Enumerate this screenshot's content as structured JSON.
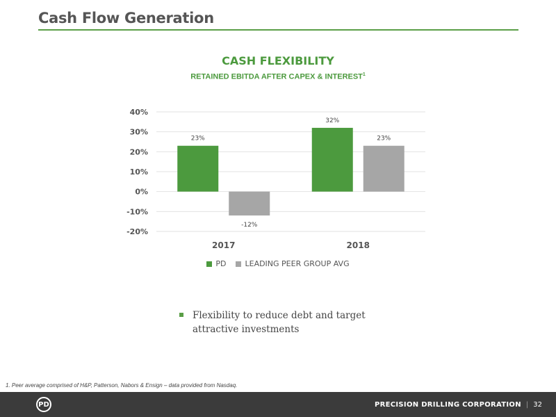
{
  "header": {
    "title": "Cash Flow Generation"
  },
  "chart_data": {
    "type": "bar",
    "title": "CASH FLEXIBILITY",
    "subtitle": "RETAINED EBITDA AFTER CAPEX & INTEREST",
    "subtitle_footnote_mark": "1",
    "categories": [
      "2017",
      "2018"
    ],
    "series": [
      {
        "name": "PD",
        "values": [
          23,
          32
        ],
        "labels": [
          "23%",
          "32%"
        ],
        "color": "#4c9a3e"
      },
      {
        "name": "LEADING PEER GROUP AVG",
        "values": [
          -12,
          23
        ],
        "labels": [
          "-12%",
          "23%"
        ],
        "color": "#a6a6a6"
      }
    ],
    "y_ticks": [
      40,
      30,
      20,
      10,
      0,
      -10,
      -20
    ],
    "y_tick_labels": [
      "40%",
      "30%",
      "20%",
      "10%",
      "0%",
      "-10%",
      "-20%"
    ],
    "ylim": [
      -20,
      40
    ],
    "grid": true,
    "legend": "bottom"
  },
  "bullets": [
    {
      "text": "Flexibility to reduce debt and target attractive investments"
    }
  ],
  "footnote": "1.    Peer average comprised of H&P, Patterson, Nabors & Ensign – data provided from Nasdaq.",
  "footer": {
    "logo_text": "PD",
    "company": "PRECISION DRILLING CORPORATION",
    "separator": "|",
    "page_number": "32"
  },
  "colors": {
    "accent": "#4c9a3e",
    "peer": "#a6a6a6",
    "footer_bg": "#3b3b3b"
  }
}
